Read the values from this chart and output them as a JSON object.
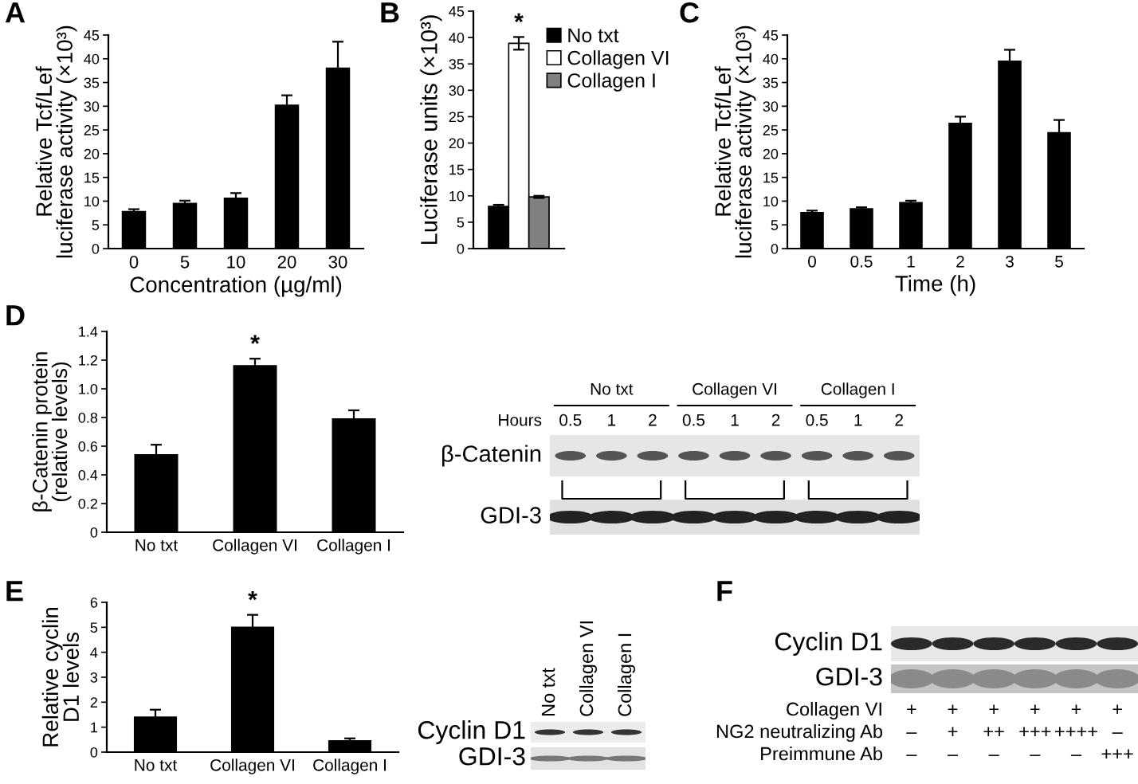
{
  "chart_data": [
    {
      "type": "bar",
      "title": "A",
      "categories": [
        "0",
        "5",
        "10",
        "20",
        "30"
      ],
      "values": [
        7.8,
        9.5,
        10.6,
        30.2,
        38.0
      ],
      "errors": [
        0.5,
        0.6,
        1.1,
        2.1,
        5.6
      ],
      "color": "#000000",
      "xlabel": "Concentration (µg/ml)",
      "ylabel": "Relative Tcf/Lef\nluciferase activity (×10³)",
      "ylim": [
        0,
        45
      ],
      "yticks": [
        0,
        5,
        10,
        15,
        20,
        25,
        30,
        35,
        40,
        45
      ]
    },
    {
      "type": "bar",
      "title": "B",
      "categories": [
        null
      ],
      "series": [
        {
          "name": "No txt",
          "color": "#000000",
          "values": [
            8.0
          ],
          "errors": [
            0.3
          ]
        },
        {
          "name": "Collagen VI",
          "color": "#ffffff",
          "values": [
            38.9
          ],
          "errors": [
            1.2
          ]
        },
        {
          "name": "Collagen I",
          "color": "#808080",
          "values": [
            9.8
          ],
          "errors": [
            0.2
          ]
        }
      ],
      "ylabel": "Luciferase units (×10³)",
      "ylim": [
        0,
        45
      ],
      "yticks": [
        0,
        5,
        10,
        15,
        20,
        25,
        30,
        35,
        40,
        45
      ],
      "legend": "top right",
      "annotations": [
        "*"
      ]
    },
    {
      "type": "bar",
      "title": "C",
      "categories": [
        "0",
        "0.5",
        "1",
        "2",
        "3",
        "5"
      ],
      "values": [
        7.6,
        8.4,
        9.7,
        26.4,
        39.5,
        24.4
      ],
      "errors": [
        0.4,
        0.3,
        0.4,
        1.4,
        2.4,
        2.7
      ],
      "color": "#000000",
      "xlabel": "Time (h)",
      "ylabel": "Relative Tcf/Lef\nluciferase activity (×10³)",
      "ylim": [
        0,
        45
      ],
      "yticks": [
        0,
        5,
        10,
        15,
        20,
        25,
        30,
        35,
        40,
        45
      ]
    },
    {
      "type": "bar",
      "title": "D",
      "categories": [
        "No txt",
        "Collagen VI",
        "Collagen I"
      ],
      "values": [
        0.54,
        1.16,
        0.79
      ],
      "errors": [
        0.07,
        0.05,
        0.06
      ],
      "color": "#000000",
      "ylabel": "β-Catenin protein\n(relative levels)",
      "ylim": [
        0,
        1.4
      ],
      "yticks": [
        0,
        0.2,
        0.4,
        0.6,
        0.8,
        {
          "value": 1,
          "label": "1.0"
        },
        1.2,
        1.4
      ],
      "annotations": [
        "*"
      ]
    },
    {
      "type": "other",
      "categories": [
        "0.5",
        "1",
        "2",
        "0.5",
        "1",
        "2",
        "0.5",
        "1",
        "2"
      ],
      "xlabel": "Hours",
      "y_categories": [
        "β-Catenin",
        "GDI-3"
      ],
      "annotations": [
        "No txt",
        "Collagen VI",
        "Collagen I"
      ]
    },
    {
      "type": "bar",
      "title": "E",
      "categories": [
        "No txt",
        "Collagen VI",
        "Collagen I"
      ],
      "values": [
        1.4,
        5.0,
        0.45
      ],
      "errors": [
        0.3,
        0.5,
        0.1
      ],
      "color": "#000000",
      "ylabel": "Relative cyclin\nD1 levels",
      "ylim": [
        0,
        6
      ],
      "yticks": [
        0,
        1,
        2,
        3,
        4,
        5,
        6
      ],
      "annotations": [
        "*"
      ]
    },
    {
      "type": "other",
      "categories": [
        "No txt",
        "Collagen VI",
        "Collagen I"
      ],
      "y_categories": [
        "Cyclin D1",
        "GDI-3"
      ]
    },
    {
      "type": "other",
      "title": "F",
      "y_categories": [
        "Cyclin D1",
        "GDI-3",
        "Collagen VI",
        "NG2 neutralizing Ab",
        "Preimmune Ab"
      ],
      "cell_labels": [
        [
          null,
          null,
          null,
          null,
          null,
          null
        ],
        [
          null,
          null,
          null,
          null,
          null,
          null
        ],
        [
          "+",
          "+",
          "+",
          "+",
          "+",
          "+"
        ],
        [
          "–",
          "+",
          "++",
          "+++",
          "++++",
          "–"
        ],
        [
          "–",
          "–",
          "–",
          "–",
          "–",
          "+++"
        ]
      ]
    }
  ]
}
